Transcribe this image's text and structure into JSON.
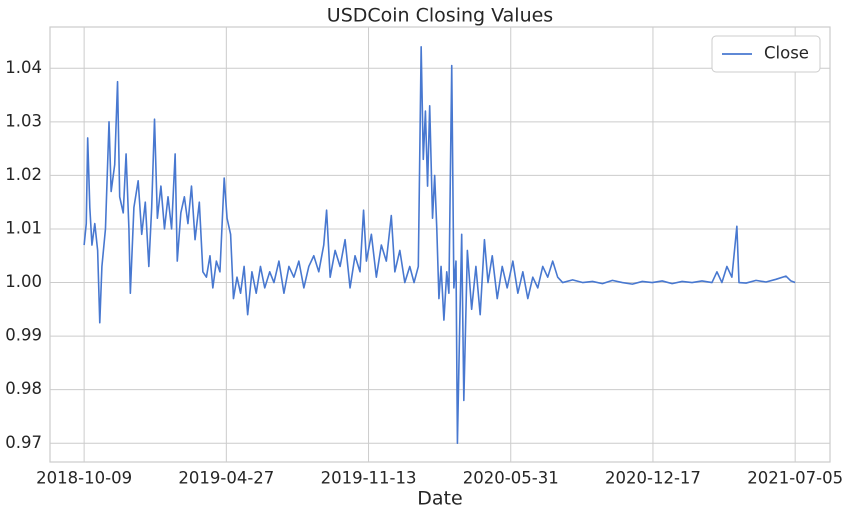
{
  "chart_data": {
    "type": "line",
    "title": "USDCoin Closing Values",
    "xlabel": "Date",
    "legend": "upper right",
    "grid": true,
    "xlim": [
      "2018-08-22",
      "2021-08-23"
    ],
    "xticks": [
      "2018-10-09",
      "2019-04-27",
      "2019-11-13",
      "2020-05-31",
      "2020-12-17",
      "2021-07-05"
    ],
    "ylim": [
      0.9665,
      1.0477
    ],
    "yticks": [
      0.97,
      0.98,
      0.99,
      {
        "value": 1,
        "label": "1.00"
      },
      1.01,
      1.02,
      1.03,
      1.04
    ],
    "x": [
      "2018-10-09",
      "2018-10-12",
      "2018-10-14",
      "2018-10-17",
      "2018-10-20",
      "2018-10-24",
      "2018-10-28",
      "2018-10-31",
      "2018-11-03",
      "2018-11-08",
      "2018-11-13",
      "2018-11-16",
      "2018-11-21",
      "2018-11-25",
      "2018-11-28",
      "2018-12-03",
      "2018-12-07",
      "2018-12-11",
      "2018-12-13",
      "2018-12-18",
      "2018-12-24",
      "2018-12-29",
      "2019-01-03",
      "2019-01-08",
      "2019-01-12",
      "2019-01-16",
      "2019-01-20",
      "2019-01-25",
      "2019-01-30",
      "2019-02-04",
      "2019-02-09",
      "2019-02-14",
      "2019-02-17",
      "2019-02-22",
      "2019-02-27",
      "2019-03-04",
      "2019-03-09",
      "2019-03-14",
      "2019-03-20",
      "2019-03-25",
      "2019-03-30",
      "2019-04-04",
      "2019-04-08",
      "2019-04-13",
      "2019-04-18",
      "2019-04-24",
      "2019-04-28",
      "2019-05-03",
      "2019-05-07",
      "2019-05-12",
      "2019-05-17",
      "2019-05-22",
      "2019-05-27",
      "2019-06-02",
      "2019-06-08",
      "2019-06-14",
      "2019-06-20",
      "2019-06-27",
      "2019-07-03",
      "2019-07-10",
      "2019-07-17",
      "2019-07-24",
      "2019-07-31",
      "2019-08-07",
      "2019-08-14",
      "2019-08-21",
      "2019-08-28",
      "2019-09-04",
      "2019-09-11",
      "2019-09-15",
      "2019-09-20",
      "2019-09-27",
      "2019-10-04",
      "2019-10-11",
      "2019-10-18",
      "2019-10-25",
      "2019-11-01",
      "2019-11-06",
      "2019-11-10",
      "2019-11-17",
      "2019-11-24",
      "2019-12-01",
      "2019-12-08",
      "2019-12-15",
      "2019-12-20",
      "2019-12-27",
      "2020-01-03",
      "2020-01-10",
      "2020-01-16",
      "2020-01-22",
      "2020-01-26",
      "2020-01-29",
      "2020-02-01",
      "2020-02-04",
      "2020-02-07",
      "2020-02-11",
      "2020-02-14",
      "2020-02-17",
      "2020-02-20",
      "2020-02-23",
      "2020-02-27",
      "2020-03-02",
      "2020-03-05",
      "2020-03-09",
      "2020-03-12",
      "2020-03-15",
      "2020-03-17",
      "2020-03-20",
      "2020-03-23",
      "2020-03-26",
      "2020-03-31",
      "2020-04-06",
      "2020-04-12",
      "2020-04-18",
      "2020-04-24",
      "2020-04-29",
      "2020-05-05",
      "2020-05-12",
      "2020-05-19",
      "2020-05-26",
      "2020-06-03",
      "2020-06-10",
      "2020-06-17",
      "2020-06-24",
      "2020-07-01",
      "2020-07-08",
      "2020-07-15",
      "2020-07-22",
      "2020-07-29",
      "2020-08-05",
      "2020-08-12",
      "2020-08-26",
      "2020-09-09",
      "2020-09-23",
      "2020-10-07",
      "2020-10-21",
      "2020-11-04",
      "2020-11-18",
      "2020-12-02",
      "2020-12-16",
      "2020-12-30",
      "2021-01-13",
      "2021-01-27",
      "2021-02-10",
      "2021-02-24",
      "2021-03-10",
      "2021-03-17",
      "2021-03-24",
      "2021-03-31",
      "2021-04-07",
      "2021-04-14",
      "2021-04-17",
      "2021-04-27",
      "2021-05-11",
      "2021-05-25",
      "2021-06-08",
      "2021-06-22",
      "2021-06-29",
      "2021-07-05"
    ],
    "series": [
      {
        "name": "Close",
        "color": "#4878d0",
        "values": [
          1.007,
          1.011,
          1.027,
          1.014,
          1.007,
          1.011,
          1.006,
          0.9925,
          1.003,
          1.01,
          1.03,
          1.017,
          1.022,
          1.0375,
          1.016,
          1.013,
          1.024,
          1.01,
          0.998,
          1.014,
          1.019,
          1.009,
          1.015,
          1.003,
          1.014,
          1.0305,
          1.012,
          1.018,
          1.01,
          1.016,
          1.01,
          1.024,
          1.004,
          1.013,
          1.016,
          1.011,
          1.018,
          1.008,
          1.015,
          1.002,
          1.001,
          1.005,
          0.999,
          1.004,
          1.002,
          1.0195,
          1.012,
          1.009,
          0.997,
          1.001,
          0.998,
          1.003,
          0.994,
          1.002,
          0.998,
          1.003,
          0.999,
          1.002,
          1.0,
          1.004,
          0.998,
          1.003,
          1.001,
          1.004,
          0.999,
          1.003,
          1.005,
          1.002,
          1.007,
          1.0135,
          1.001,
          1.006,
          1.003,
          1.008,
          0.999,
          1.005,
          1.002,
          1.0135,
          1.004,
          1.009,
          1.001,
          1.007,
          1.004,
          1.0125,
          1.002,
          1.006,
          1.0,
          1.003,
          1.0,
          1.003,
          1.044,
          1.023,
          1.032,
          1.018,
          1.033,
          1.012,
          1.02,
          1.01,
          0.997,
          1.003,
          0.993,
          1.002,
          0.998,
          1.0405,
          0.999,
          1.004,
          0.97,
          0.9905,
          1.009,
          0.978,
          1.006,
          0.995,
          1.003,
          0.994,
          1.008,
          1.0,
          1.005,
          0.997,
          1.003,
          0.999,
          1.004,
          0.998,
          1.002,
          0.997,
          1.001,
          0.999,
          1.003,
          1.001,
          1.004,
          1.001,
          1.0,
          1.0005,
          1.0,
          1.0002,
          0.9998,
          1.0004,
          1.0,
          0.9997,
          1.0002,
          1.0,
          1.0003,
          0.9998,
          1.0002,
          1.0,
          1.0003,
          1.0,
          1.002,
          1.0,
          1.003,
          1.001,
          1.0105,
          1.0,
          0.9999,
          1.0004,
          1.0001,
          1.0006,
          1.0012,
          1.0003,
          1.0
        ]
      }
    ]
  }
}
